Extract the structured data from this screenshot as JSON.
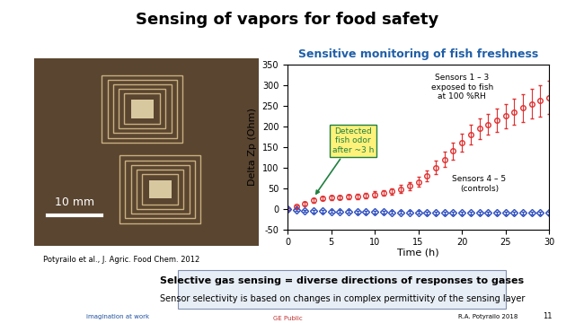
{
  "slide": {
    "title": "Sensing of vapors for food safety",
    "photo": {
      "scale_bar": "10 mm",
      "citation": "Potyrailo et al., J. Agric. Food Chem. 2012"
    },
    "box": {
      "heading": "Selective gas sensing = diverse directions of responses to gases",
      "text": "Sensor selectivity is based on changes in complex permittivity of the sensing layer"
    },
    "footer": {
      "logo": "imagination at work",
      "center": "GE Public",
      "right": "R.A. Potyrailo 2018",
      "page": "11"
    }
  },
  "chart_data": {
    "type": "line",
    "title": "Sensitive monitoring of fish freshness",
    "x_label": "Time (h)",
    "y_label": "Delta Zp (Ohm)",
    "x": [
      0,
      1,
      2,
      3,
      4,
      5,
      6,
      7,
      8,
      9,
      10,
      11,
      12,
      13,
      14,
      15,
      16,
      17,
      18,
      19,
      20,
      21,
      22,
      23,
      24,
      25,
      26,
      27,
      28,
      29,
      30
    ],
    "xlim": [
      0,
      30
    ],
    "xticks": [
      0,
      5,
      10,
      15,
      20,
      25,
      30
    ],
    "ylim": [
      -50,
      350
    ],
    "yticks": [
      -50,
      0,
      50,
      100,
      150,
      200,
      250,
      300,
      350
    ],
    "series": [
      {
        "color": "#e03030",
        "marker": "circle",
        "line_style": "none",
        "values": [
          0,
          5,
          12,
          20,
          25,
          27,
          28,
          29,
          30,
          32,
          35,
          38,
          42,
          48,
          55,
          65,
          80,
          100,
          120,
          140,
          160,
          180,
          195,
          205,
          215,
          225,
          235,
          245,
          255,
          262,
          270
        ],
        "error": [
          2,
          3,
          4,
          5,
          5,
          5,
          5,
          6,
          6,
          6,
          7,
          7,
          8,
          9,
          10,
          12,
          14,
          16,
          18,
          20,
          22,
          24,
          25,
          26,
          28,
          30,
          32,
          34,
          36,
          38,
          40
        ]
      },
      {
        "color": "#3050c0",
        "marker": "diamond",
        "line_style": "none",
        "values": [
          0,
          -3,
          -5,
          -6,
          -6,
          -7,
          -7,
          -7,
          -8,
          -8,
          -8,
          -8,
          -9,
          -9,
          -9,
          -9,
          -10,
          -10,
          -10,
          -10,
          -10,
          -10,
          -10,
          -10,
          -10,
          -10,
          -10,
          -10,
          -10,
          -10,
          -10
        ],
        "error": [
          2,
          2,
          2,
          3,
          3,
          3,
          3,
          3,
          3,
          3,
          3,
          3,
          3,
          3,
          3,
          3,
          3,
          3,
          3,
          3,
          3,
          3,
          3,
          3,
          3,
          3,
          3,
          3,
          3,
          3,
          3
        ]
      }
    ],
    "annotations": [
      "Sensors 1 – 3\nexposed to fish\nat 100 %RH",
      "Sensors 4 – 5\n(controls)",
      "Detected\nfish odor\nafter ~3 h"
    ]
  }
}
